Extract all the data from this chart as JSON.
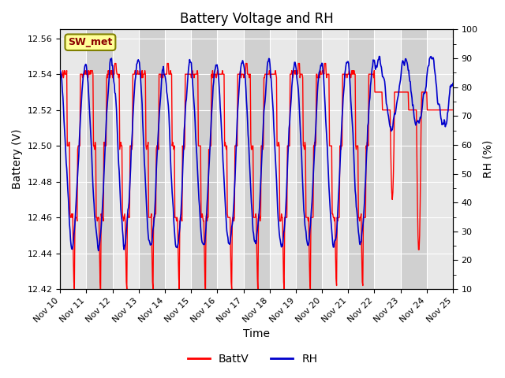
{
  "title": "Battery Voltage and RH",
  "xlabel": "Time",
  "ylabel_left": "Battery (V)",
  "ylabel_right": "RH (%)",
  "station_label": "SW_met",
  "ylim_left": [
    12.42,
    12.565
  ],
  "ylim_right": [
    10,
    100
  ],
  "yticks_left": [
    12.42,
    12.44,
    12.46,
    12.48,
    12.5,
    12.52,
    12.54,
    12.56
  ],
  "yticks_right": [
    10,
    20,
    30,
    40,
    50,
    60,
    70,
    80,
    90,
    100
  ],
  "batt_color": "#FF0000",
  "rh_color": "#0000CC",
  "legend_batt": "BattV",
  "legend_rh": "RH",
  "background_color": "#FFFFFF",
  "plot_bg_light": "#E8E8E8",
  "plot_bg_dark": "#D0D0D0",
  "station_box_color": "#FFFF99",
  "station_box_edge": "#808000",
  "grid_color": "#FFFFFF",
  "title_fontsize": 12,
  "label_fontsize": 10,
  "tick_fontsize": 8,
  "legend_fontsize": 10
}
